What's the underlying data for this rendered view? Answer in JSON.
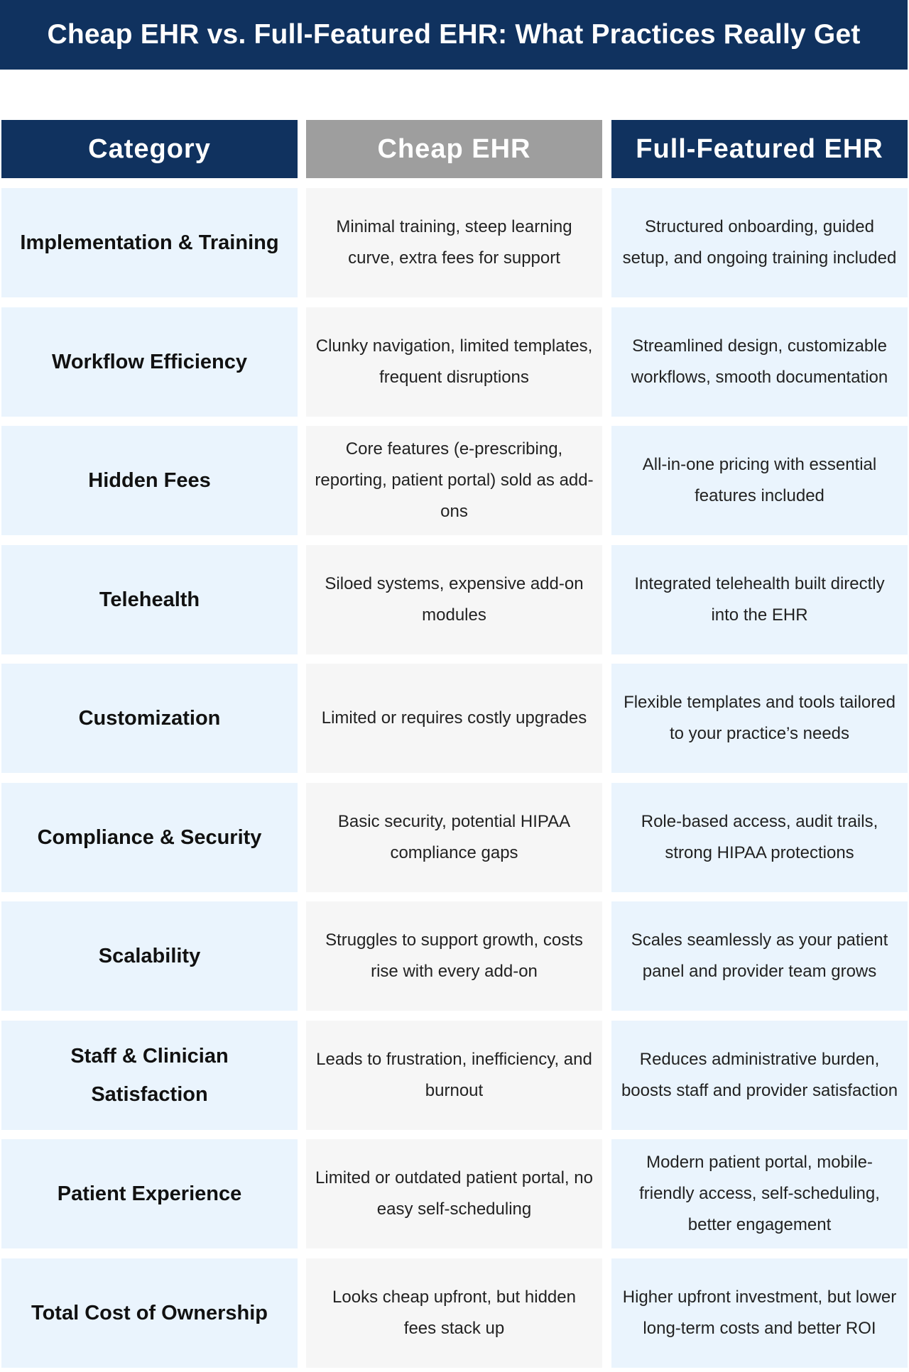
{
  "title": "Cheap EHR vs. Full-Featured EHR: What Practices Really Get",
  "columns": [
    "Category",
    "Cheap EHR",
    "Full-Featured EHR"
  ],
  "colors": {
    "navy": "#10325f",
    "gray_header": "#9e9e9e",
    "category_bg": "#eaf4fd",
    "cheap_bg": "#f6f6f6"
  },
  "rows": [
    {
      "category": "Implementation & Training",
      "cheap": "Minimal training, steep learning curve, extra fees for support",
      "full": "Structured onboarding, guided setup, and ongoing training included"
    },
    {
      "category": "Workflow Efficiency",
      "cheap": "Clunky navigation, limited templates, frequent disruptions",
      "full": "Streamlined design, customizable workflows, smooth documentation"
    },
    {
      "category": "Hidden Fees",
      "cheap": "Core features (e-prescribing, reporting, patient portal) sold as add-ons",
      "full": "All-in-one pricing with essential features included"
    },
    {
      "category": "Telehealth",
      "cheap": "Siloed systems, expensive add-on modules",
      "full": "Integrated telehealth built directly into the EHR"
    },
    {
      "category": "Customization",
      "cheap": "Limited or requires costly upgrades",
      "full": "Flexible templates and tools tailored to your practice’s needs"
    },
    {
      "category": "Compliance & Security",
      "cheap": "Basic security, potential HIPAA compliance gaps",
      "full": "Role-based access, audit trails, strong HIPAA protections"
    },
    {
      "category": "Scalability",
      "cheap": "Struggles to support growth, costs rise with every add-on",
      "full": "Scales seamlessly as your patient panel and provider team grows"
    },
    {
      "category": "Staff & Clinician Satisfaction",
      "cheap": "Leads to frustration, inefficiency, and burnout",
      "full": "Reduces administrative burden, boosts staff and provider satisfaction"
    },
    {
      "category": "Patient Experience",
      "cheap": "Limited or outdated patient portal, no easy self-scheduling",
      "full": "Modern patient portal, mobile-friendly access, self-scheduling, better engagement"
    },
    {
      "category": "Total Cost of Ownership",
      "cheap": "Looks cheap upfront, but hidden fees stack up",
      "full": "Higher upfront investment, but lower long-term costs and better ROI"
    }
  ]
}
